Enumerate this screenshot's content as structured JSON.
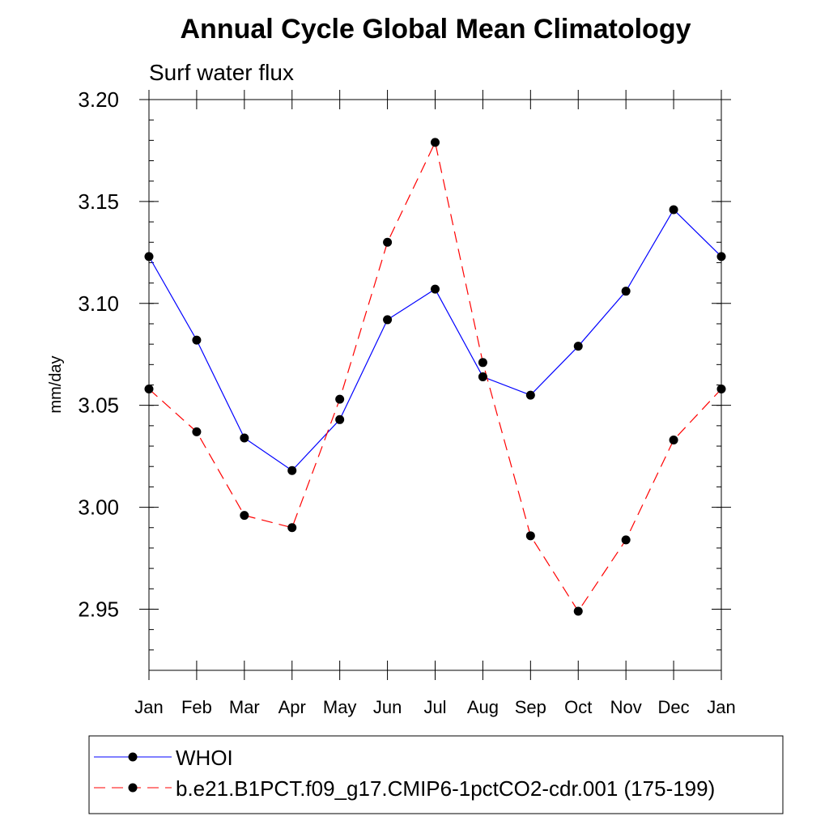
{
  "chart_data": {
    "type": "line",
    "title": "Annual Cycle Global Mean Climatology",
    "subtitle": "Surf water flux",
    "xlabel": "",
    "ylabel": "mm/day",
    "categories": [
      "Jan",
      "Feb",
      "Mar",
      "Apr",
      "May",
      "Jun",
      "Jul",
      "Aug",
      "Sep",
      "Oct",
      "Nov",
      "Dec",
      "Jan"
    ],
    "ylim": [
      2.92,
      3.2
    ],
    "yticks": [
      2.95,
      3.0,
      3.05,
      3.1,
      3.15,
      3.2
    ],
    "ytick_labels": [
      "2.95",
      "3.00",
      "3.05",
      "3.10",
      "3.15",
      "3.20"
    ],
    "legend_position": "bottom",
    "series": [
      {
        "name": "WHOI",
        "color": "#0000ff",
        "dash": "solid",
        "values": [
          3.123,
          3.082,
          3.034,
          3.018,
          3.043,
          3.092,
          3.107,
          3.064,
          3.055,
          3.079,
          3.106,
          3.146,
          3.123
        ]
      },
      {
        "name": "b.e21.B1PCT.f09_g17.CMIP6-1pctCO2-cdr.001 (175-199)",
        "color": "#ff0000",
        "dash": "dashed",
        "values": [
          3.058,
          3.037,
          2.996,
          2.99,
          3.053,
          3.13,
          3.179,
          3.071,
          2.986,
          2.949,
          2.984,
          3.033,
          3.058
        ]
      }
    ]
  }
}
